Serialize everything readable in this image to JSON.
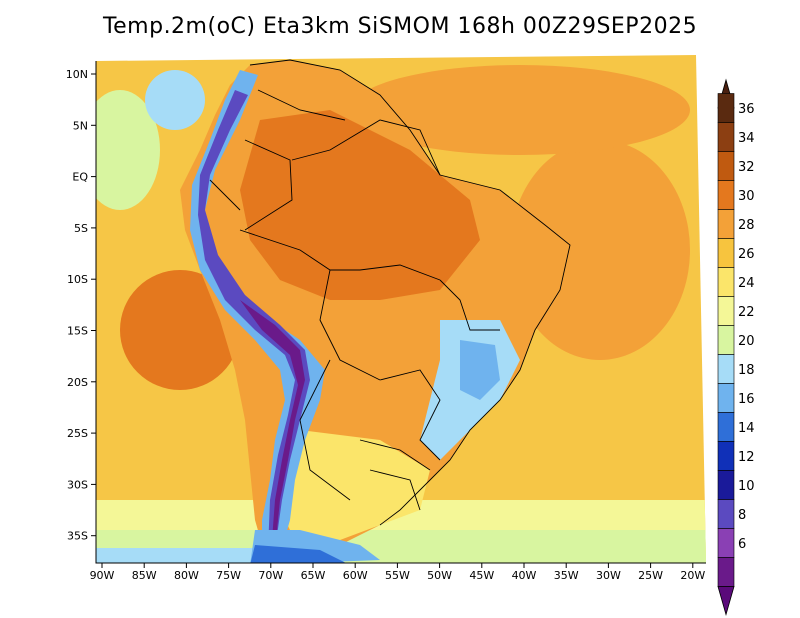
{
  "title": "Temp.2m(oC) Eta3km SiSMOM 168h 00Z29SEP2025",
  "map": {
    "variable": "Temp.2m",
    "units": "oC",
    "lat_labels": [
      "10N",
      "5N",
      "EQ",
      "5S",
      "10S",
      "15S",
      "20S",
      "25S",
      "30S",
      "35S"
    ],
    "lon_labels": [
      "90W",
      "85W",
      "80W",
      "75W",
      "70W",
      "65W",
      "60W",
      "55W",
      "50W",
      "45W",
      "40W",
      "35W",
      "30W",
      "25W",
      "20W"
    ]
  },
  "colorbar": {
    "labels": [
      "36",
      "34",
      "32",
      "30",
      "28",
      "26",
      "24",
      "22",
      "20",
      "18",
      "16",
      "14",
      "12",
      "10",
      "8",
      "6"
    ],
    "colors": [
      "#5a2a10",
      "#8c3f12",
      "#c05a10",
      "#e4781e",
      "#f3a138",
      "#f7c43e",
      "#fbe56a",
      "#f4f797",
      "#d8f5a0",
      "#a6dcf7",
      "#6fb3ee",
      "#2f6fd8",
      "#1030b8",
      "#1a1a9a",
      "#5b4ac0",
      "#8a40b4",
      "#6a1a8a"
    ],
    "top_color": "#4a2010",
    "bottom_color": "#5a0a7a"
  }
}
